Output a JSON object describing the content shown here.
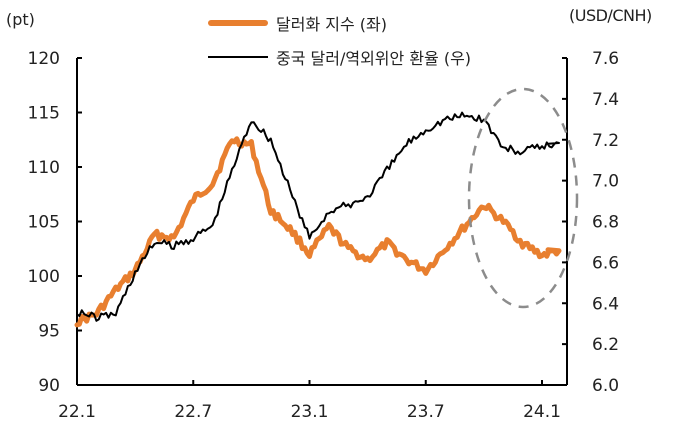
{
  "chart_data": {
    "type": "line",
    "title": "",
    "left_axis_unit": "(pt)",
    "right_axis_unit": "(USD/CNH)",
    "x_tick_labels": [
      "22.1",
      "22.7",
      "23.1",
      "23.7",
      "24.1"
    ],
    "left_ylim": [
      90,
      120
    ],
    "left_yticks": [
      "90",
      "95",
      "100",
      "105",
      "110",
      "115",
      "120"
    ],
    "right_ylim": [
      6.0,
      7.6
    ],
    "right_yticks": [
      "6.0",
      "6.2",
      "6.4",
      "6.6",
      "6.8",
      "7.0",
      "7.2",
      "7.4",
      "7.6"
    ],
    "x": [
      "22.1",
      "22.2",
      "22.3",
      "22.4",
      "22.5",
      "22.6",
      "22.7",
      "22.8",
      "22.9",
      "22.10",
      "22.11",
      "22.12",
      "23.1",
      "23.2",
      "23.3",
      "23.4",
      "23.5",
      "23.6",
      "23.7",
      "23.8",
      "23.9",
      "23.10",
      "23.11",
      "23.12",
      "24.1",
      "24.2"
    ],
    "series": [
      {
        "name": "달러화 지수 (좌)",
        "axis": "left",
        "color": "#e87f2f",
        "values": [
          95.8,
          96.5,
          98.7,
          100.5,
          103.8,
          103.5,
          107.0,
          108.5,
          112.5,
          112.0,
          106.0,
          104.3,
          102.0,
          104.5,
          102.5,
          101.5,
          103.0,
          101.5,
          100.5,
          102.5,
          104.5,
          106.5,
          105.0,
          103.0,
          101.9,
          102.4
        ]
      },
      {
        "name": "중국 달러/역외위안 환율 (우)",
        "axis": "right",
        "color": "#000000",
        "values": [
          6.36,
          6.33,
          6.35,
          6.55,
          6.7,
          6.68,
          6.72,
          6.78,
          7.05,
          7.3,
          7.2,
          6.95,
          6.72,
          6.85,
          6.88,
          6.92,
          7.05,
          7.18,
          7.25,
          7.3,
          7.32,
          7.3,
          7.16,
          7.14,
          7.17,
          7.18
        ]
      }
    ],
    "annotation": {
      "type": "dashed-ellipse",
      "around": "23.9 ~ 24.2"
    },
    "grid": false,
    "legend_position": "top"
  }
}
